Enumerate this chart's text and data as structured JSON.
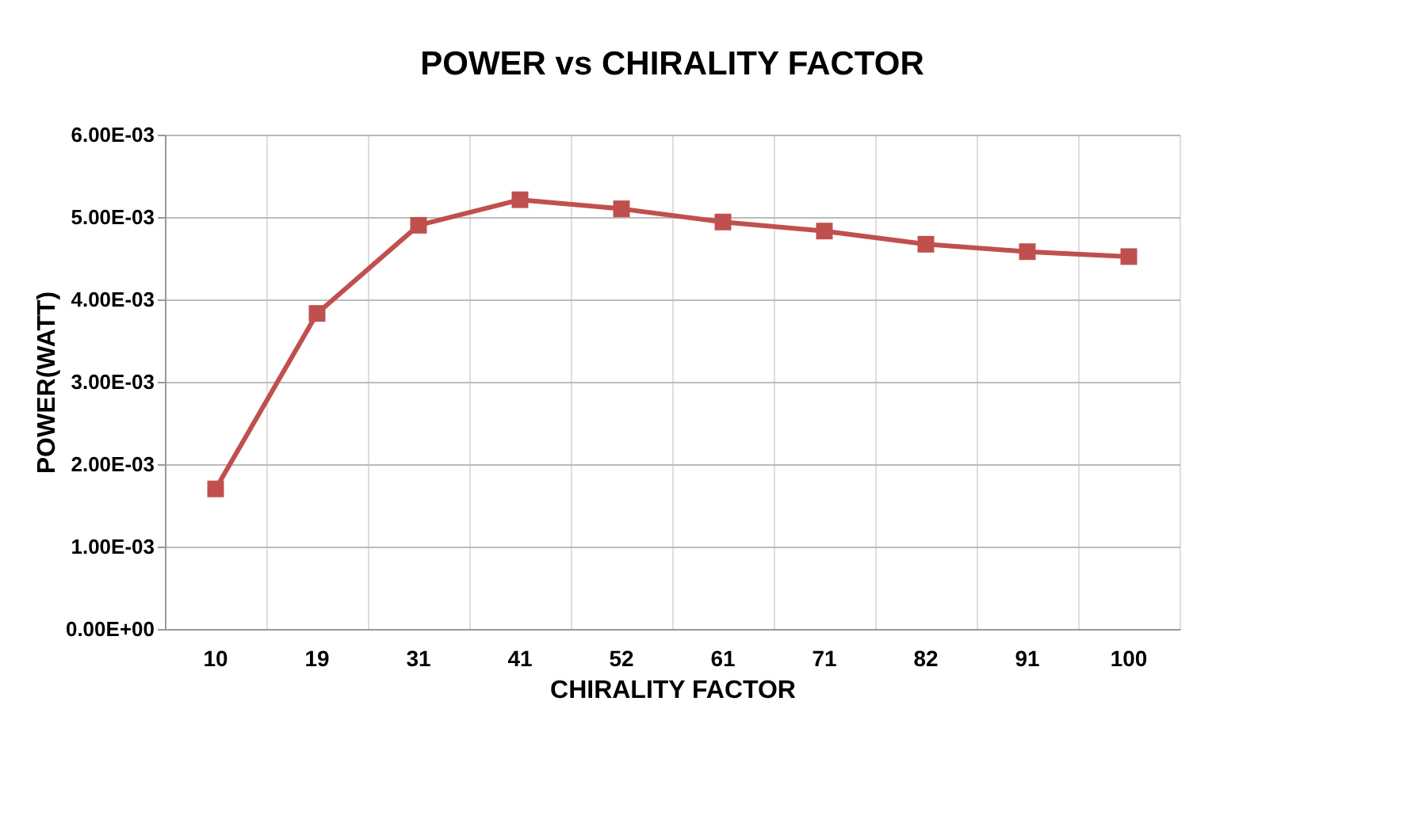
{
  "chart_data": {
    "type": "line",
    "title": "POWER vs CHIRALITY FACTOR",
    "xlabel": "CHIRALITY FACTOR",
    "ylabel": "POWER(WATT)",
    "categories": [
      "10",
      "19",
      "31",
      "41",
      "52",
      "61",
      "71",
      "82",
      "91",
      "100"
    ],
    "series": [
      {
        "color": "#c0504d",
        "values": [
          0.0017,
          0.00383,
          0.0049,
          0.00521,
          0.0051,
          0.00494,
          0.00483,
          0.00467,
          0.00458,
          0.00452
        ]
      }
    ],
    "ylim": [
      0,
      0.006
    ],
    "yticks": [
      {
        "value": 0,
        "label": "0.00E+00"
      },
      {
        "value": 0.001,
        "label": "1.00E-03"
      },
      {
        "value": 0.002,
        "label": "2.00E-03"
      },
      {
        "value": 0.003,
        "label": "3.00E-03"
      },
      {
        "value": 0.004,
        "label": "4.00E-03"
      },
      {
        "value": 0.005,
        "label": "5.00E-03"
      },
      {
        "value": 0.006,
        "label": "6.00E-03"
      }
    ],
    "grid": true,
    "marker": "square",
    "line_style": "solid"
  }
}
